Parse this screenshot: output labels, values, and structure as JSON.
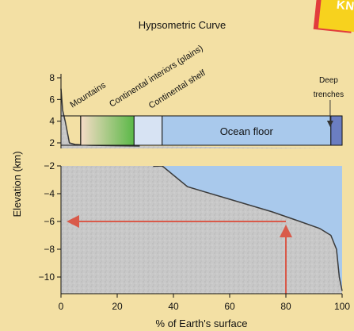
{
  "title": "Hypsometric Curve",
  "badge_text": "KNO",
  "chart_data": {
    "type": "area",
    "title": "Hypsometric Curve",
    "xlabel": "% of Earth's surface",
    "ylabel": "Elevation (km)",
    "xlim": [
      0,
      100
    ],
    "x_ticks": [
      0,
      20,
      40,
      60,
      80,
      100
    ],
    "y_ticks_upper": [
      8,
      6,
      4,
      2
    ],
    "y_ticks_lower": [
      -2,
      -4,
      -6,
      -8,
      -10
    ],
    "curve": [
      {
        "x": 0,
        "y": 7
      },
      {
        "x": 0.6,
        "y": 5
      },
      {
        "x": 1.5,
        "y": 4
      },
      {
        "x": 3,
        "y": 2
      },
      {
        "x": 5,
        "y": 1
      },
      {
        "x": 10,
        "y": 0.5
      },
      {
        "x": 20,
        "y": 0.2
      },
      {
        "x": 28,
        "y": 0
      },
      {
        "x": 33,
        "y": -0.3
      },
      {
        "x": 36,
        "y": -2
      },
      {
        "x": 45,
        "y": -3.5
      },
      {
        "x": 60,
        "y": -4.4
      },
      {
        "x": 75,
        "y": -5.3
      },
      {
        "x": 85,
        "y": -6
      },
      {
        "x": 92,
        "y": -6.5
      },
      {
        "x": 96,
        "y": -7
      },
      {
        "x": 98,
        "y": -8
      },
      {
        "x": 99,
        "y": -10
      },
      {
        "x": 100,
        "y": -11
      }
    ],
    "legend_bands": [
      {
        "label": "Mountains",
        "from": 7,
        "to": 26,
        "color_from": "#f6dcc6",
        "color_to": "#5ab847",
        "rotate": -32
      },
      {
        "label": "Continental interiors (plains)",
        "from": 26,
        "to": 36,
        "color_from": "#d7e3f3",
        "color_to": "#d7e3f3",
        "rotate": -32
      },
      {
        "label": "Continental shelf",
        "from": 36,
        "to": 96,
        "color_from": "#a9c9ec",
        "color_to": "#a9c9ec",
        "rotate": -32
      },
      {
        "label": "Deep trenches",
        "from": 96,
        "to": 100,
        "color_from": "#6b7ec2",
        "color_to": "#6b7ec2",
        "rotate": 0
      }
    ],
    "band_inside_label": "Ocean floor",
    "annotation": {
      "x": 80,
      "y": -6
    },
    "colors": {
      "land": "#c7c7c7",
      "ocean": "#a9c9ec",
      "arrow": "#d95a4a",
      "curve": "#3a3a3a",
      "trench_arrow": "#333333"
    }
  }
}
